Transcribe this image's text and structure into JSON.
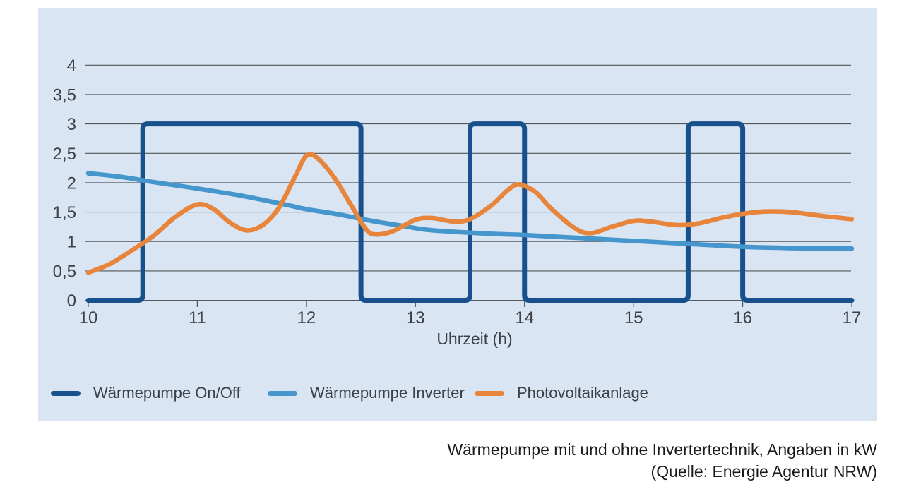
{
  "chart_data": {
    "type": "line",
    "title": "",
    "xlabel": "Uhrzeit (h)",
    "ylabel": "",
    "unit": "kW",
    "xlim": [
      10,
      17
    ],
    "ylim": [
      0,
      4
    ],
    "grid": "horizontal",
    "legend_position": "bottom-left",
    "xticks": [
      {
        "v": 10,
        "label": "10"
      },
      {
        "v": 11,
        "label": "11"
      },
      {
        "v": 12,
        "label": "12"
      },
      {
        "v": 13,
        "label": "13"
      },
      {
        "v": 14,
        "label": "14"
      },
      {
        "v": 15,
        "label": "15"
      },
      {
        "v": 16,
        "label": "16"
      },
      {
        "v": 17,
        "label": "17"
      }
    ],
    "yticks": [
      {
        "v": 0,
        "label": "0"
      },
      {
        "v": 0.5,
        "label": "0,5"
      },
      {
        "v": 1,
        "label": "1"
      },
      {
        "v": 1.5,
        "label": "1,5"
      },
      {
        "v": 2,
        "label": "2"
      },
      {
        "v": 2.5,
        "label": "2,5"
      },
      {
        "v": 3,
        "label": "3"
      },
      {
        "v": 3.5,
        "label": "3,5"
      },
      {
        "v": 4,
        "label": "4"
      }
    ],
    "series": [
      {
        "name": "Wärmepumpe On/Off",
        "color": "#18508e",
        "style": "step",
        "points": [
          [
            10,
            0
          ],
          [
            10.5,
            0
          ],
          [
            10.5,
            3
          ],
          [
            12.5,
            3
          ],
          [
            12.5,
            0
          ],
          [
            13.5,
            0
          ],
          [
            13.5,
            3
          ],
          [
            14,
            3
          ],
          [
            14,
            0
          ],
          [
            15.5,
            0
          ],
          [
            15.5,
            3
          ],
          [
            16,
            3
          ],
          [
            16,
            0
          ],
          [
            17,
            0
          ]
        ]
      },
      {
        "name": "Wärmepumpe Inverter",
        "color": "#4496cd",
        "style": "smooth",
        "points": [
          [
            10,
            2.16
          ],
          [
            10.3,
            2.1
          ],
          [
            10.6,
            2.01
          ],
          [
            11,
            1.9
          ],
          [
            11.4,
            1.78
          ],
          [
            11.8,
            1.63
          ],
          [
            12,
            1.55
          ],
          [
            12.3,
            1.46
          ],
          [
            12.6,
            1.35
          ],
          [
            12.9,
            1.26
          ],
          [
            13.1,
            1.2
          ],
          [
            13.4,
            1.16
          ],
          [
            13.7,
            1.13
          ],
          [
            14,
            1.11
          ],
          [
            14.4,
            1.07
          ],
          [
            14.8,
            1.03
          ],
          [
            15.2,
            0.99
          ],
          [
            15.6,
            0.95
          ],
          [
            16,
            0.91
          ],
          [
            16.4,
            0.89
          ],
          [
            16.7,
            0.88
          ],
          [
            17,
            0.88
          ]
        ]
      },
      {
        "name": "Photovoltaikanlage",
        "color": "#e7853d",
        "style": "smooth",
        "points": [
          [
            10,
            0.47
          ],
          [
            10.2,
            0.62
          ],
          [
            10.4,
            0.85
          ],
          [
            10.6,
            1.1
          ],
          [
            10.8,
            1.42
          ],
          [
            11,
            1.63
          ],
          [
            11.15,
            1.55
          ],
          [
            11.3,
            1.32
          ],
          [
            11.45,
            1.19
          ],
          [
            11.6,
            1.28
          ],
          [
            11.75,
            1.58
          ],
          [
            11.9,
            2.12
          ],
          [
            12,
            2.46
          ],
          [
            12.1,
            2.42
          ],
          [
            12.25,
            2.1
          ],
          [
            12.4,
            1.65
          ],
          [
            12.55,
            1.2
          ],
          [
            12.65,
            1.12
          ],
          [
            12.8,
            1.18
          ],
          [
            13,
            1.37
          ],
          [
            13.15,
            1.4
          ],
          [
            13.35,
            1.34
          ],
          [
            13.5,
            1.38
          ],
          [
            13.7,
            1.62
          ],
          [
            13.85,
            1.88
          ],
          [
            13.95,
            1.97
          ],
          [
            14.1,
            1.84
          ],
          [
            14.25,
            1.55
          ],
          [
            14.45,
            1.24
          ],
          [
            14.6,
            1.14
          ],
          [
            14.8,
            1.25
          ],
          [
            15,
            1.35
          ],
          [
            15.15,
            1.34
          ],
          [
            15.4,
            1.28
          ],
          [
            15.6,
            1.31
          ],
          [
            15.8,
            1.4
          ],
          [
            16,
            1.47
          ],
          [
            16.2,
            1.51
          ],
          [
            16.45,
            1.5
          ],
          [
            16.7,
            1.44
          ],
          [
            17,
            1.38
          ]
        ]
      }
    ]
  },
  "caption": {
    "line1": "Wärmepumpe mit und ohne Invertertechnik, Angaben in kW",
    "line2": "(Quelle: Energie Agentur NRW)"
  },
  "colors": {
    "panel_bg": "#d9e5f2",
    "grid": "#53565a",
    "tick_text": "#3d4147",
    "legend_text": "#3b4046",
    "caption_text": "#1a1a1a"
  }
}
